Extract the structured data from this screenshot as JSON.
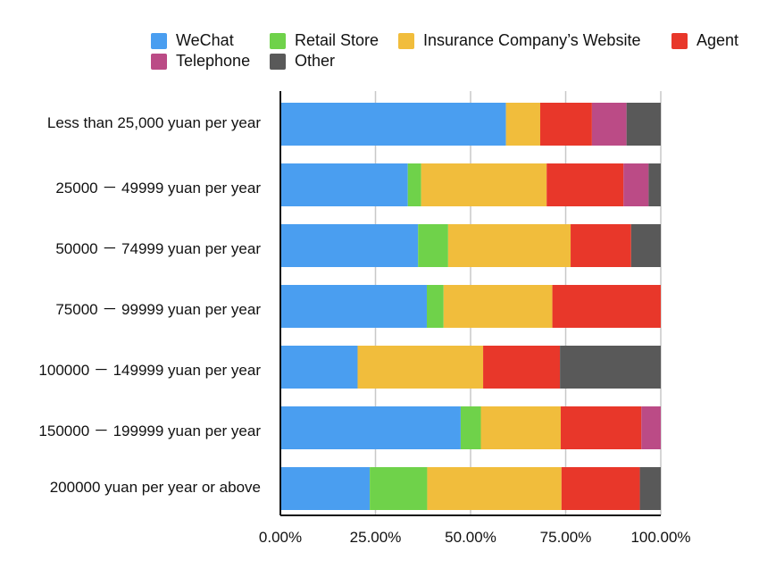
{
  "chart_data": {
    "type": "bar",
    "orientation": "horizontal",
    "stacked": true,
    "normalized": true,
    "title": "",
    "xlabel": "",
    "ylabel": "",
    "xlim": [
      0,
      100
    ],
    "grid": true,
    "legend_position": "top",
    "x_tick_labels": [
      "0.00%",
      "25.00%",
      "50.00%",
      "75.00%",
      "100.00%"
    ],
    "categories": [
      "Less than 25,000 yuan per year",
      "25000 － 49999 yuan per year",
      "50000 － 74999 yuan per year",
      "75000 － 99999 yuan per year",
      "100000 － 149999 yuan per year",
      "150000 － 199999 yuan per year",
      "200000 yuan per year or above"
    ],
    "series": [
      {
        "name": "WeChat",
        "color": "#4a9ef0",
        "values": [
          59.3,
          33.5,
          36.2,
          38.5,
          20.3,
          47.4,
          23.5
        ]
      },
      {
        "name": "Retail Store",
        "color": "#6fd24a",
        "values": [
          0,
          3.5,
          7.9,
          4.4,
          0,
          5.3,
          15.1
        ]
      },
      {
        "name": "Insurance Company’s Website",
        "color": "#f1bd3c",
        "values": [
          9.0,
          33.0,
          32.2,
          28.6,
          33.0,
          21.0,
          35.3
        ]
      },
      {
        "name": "Agent",
        "color": "#e8372a",
        "values": [
          13.6,
          20.2,
          15.9,
          28.5,
          20.2,
          21.2,
          20.6
        ]
      },
      {
        "name": "Telephone",
        "color": "#bb4b86",
        "values": [
          9.1,
          6.6,
          0,
          0,
          0,
          5.1,
          0
        ]
      },
      {
        "name": "Other",
        "color": "#595959",
        "values": [
          9.0,
          3.2,
          7.8,
          0,
          26.5,
          0,
          5.5
        ]
      }
    ]
  }
}
